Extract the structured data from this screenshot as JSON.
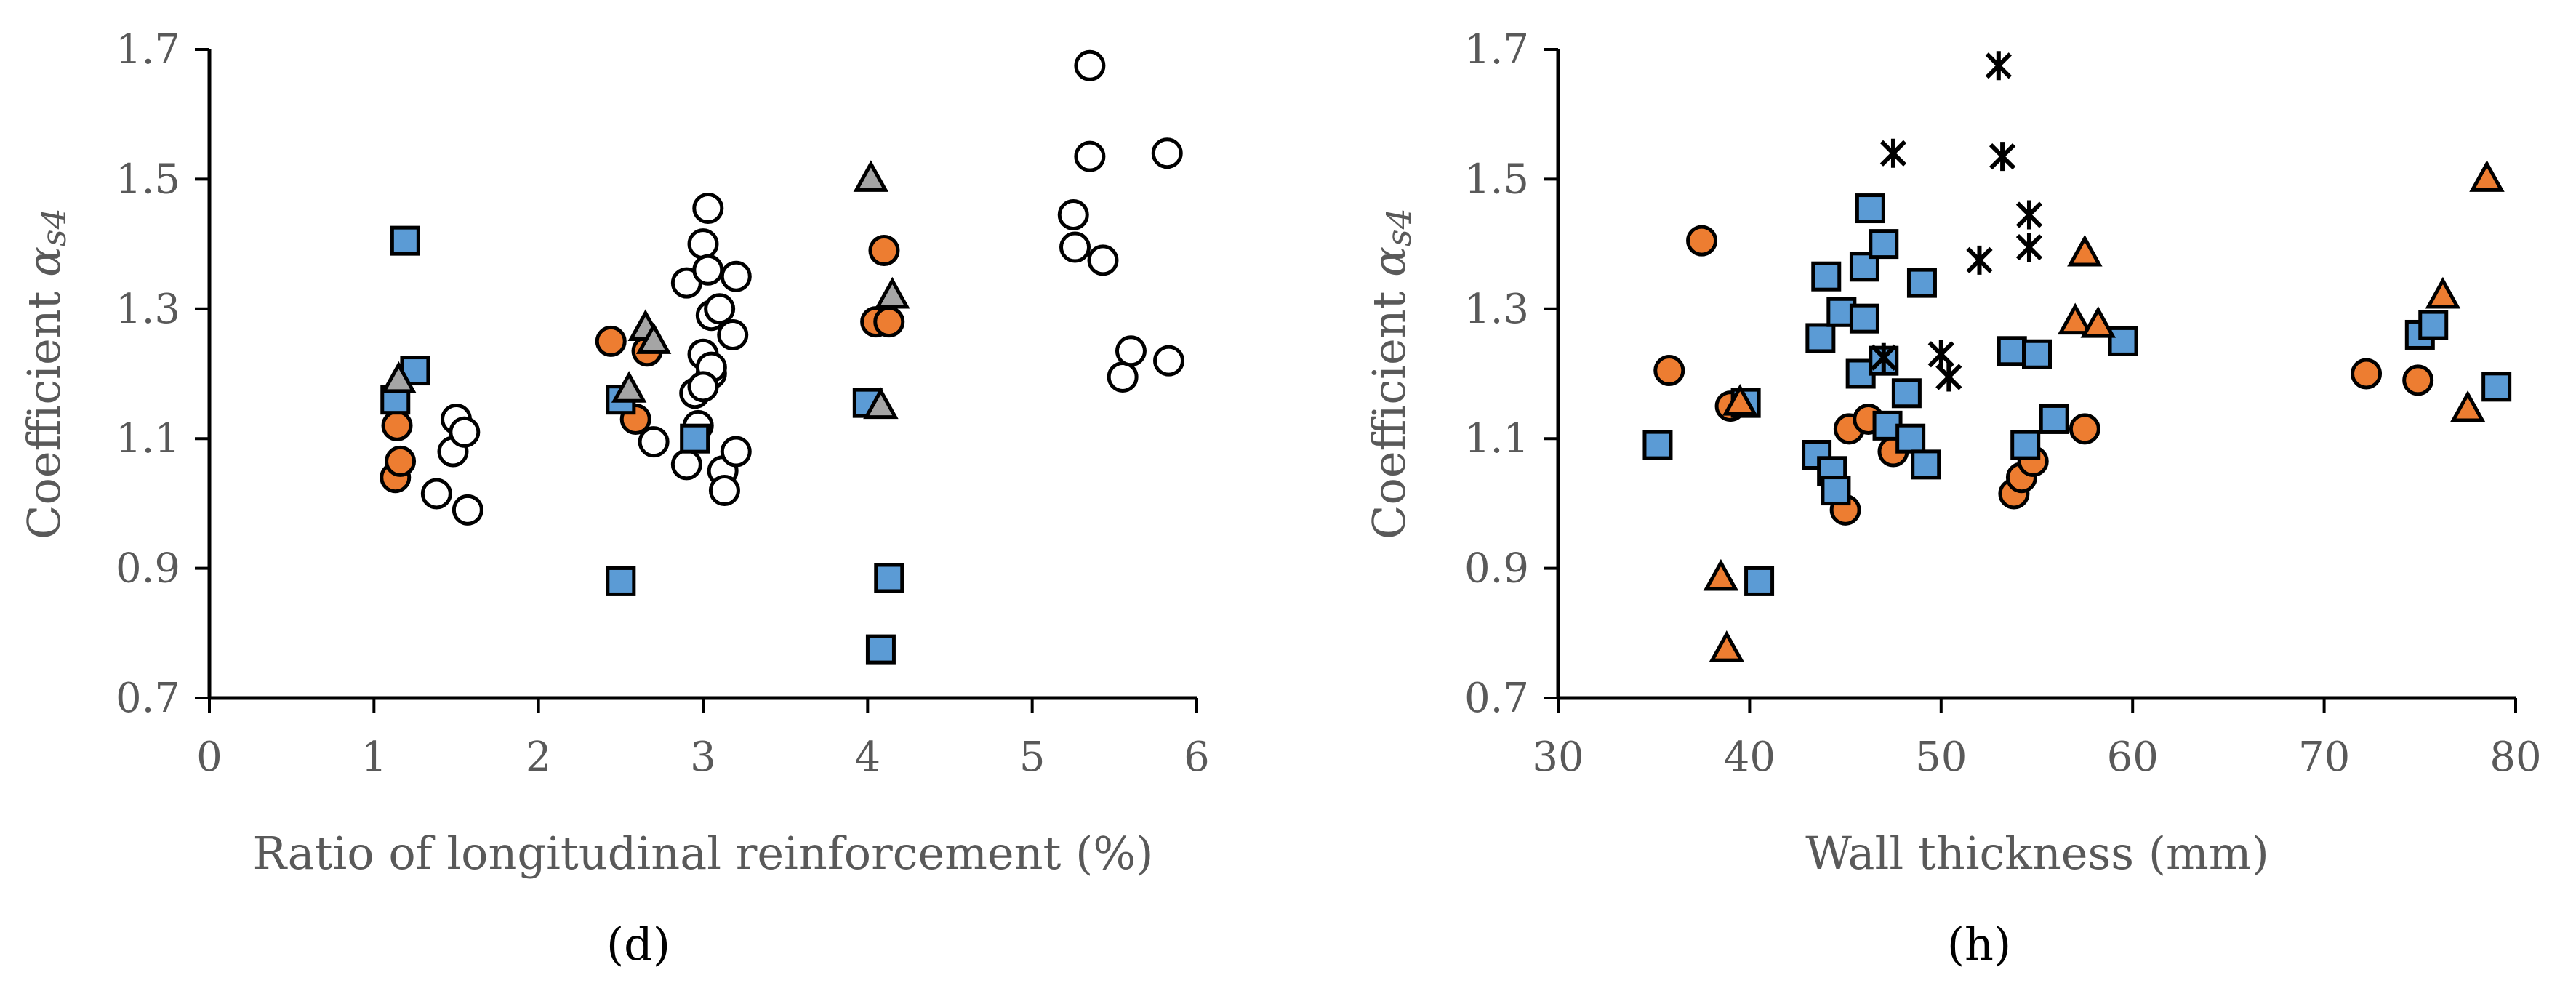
{
  "colors": {
    "circle_open": "#ffffff",
    "circle_orange": "#ed7d31",
    "square_blue": "#5b9bd5",
    "triangle_gray": "#a5a5a5",
    "triangle_orange": "#ed7d31",
    "stroke": "#000000",
    "axis": "#000000",
    "text": "#595959"
  },
  "chart_data": [
    {
      "type": "scatter",
      "caption": "(d)",
      "xlabel": "Ratio of longitudinal reinforcement (%)",
      "ylabel": "Coefficient αs4",
      "ylabel_main": "Coefficient ",
      "ylabel_greek": "α",
      "ylabel_sub": "s4",
      "xlim": [
        0,
        6
      ],
      "ylim": [
        0.7,
        1.7
      ],
      "xticks": [
        "0",
        "1",
        "2",
        "3",
        "4",
        "5",
        "6"
      ],
      "yticks": [
        "0.7",
        "0.9",
        "1.1",
        "1.3",
        "1.5",
        "1.7"
      ],
      "grid": false,
      "series": [
        {
          "name": "open circles",
          "marker": "circle",
          "fill": "open",
          "points": [
            [
              1.38,
              1.015
            ],
            [
              1.48,
              1.08
            ],
            [
              1.5,
              1.13
            ],
            [
              1.55,
              1.11
            ],
            [
              1.57,
              0.99
            ],
            [
              2.7,
              1.095
            ],
            [
              2.9,
              1.34
            ],
            [
              2.9,
              1.06
            ],
            [
              2.95,
              1.17
            ],
            [
              2.97,
              1.12
            ],
            [
              3.0,
              1.4
            ],
            [
              3.0,
              1.23
            ],
            [
              3.03,
              1.455
            ],
            [
              3.03,
              1.36
            ],
            [
              3.05,
              1.29
            ],
            [
              3.05,
              1.2
            ],
            [
              3.1,
              1.3
            ],
            [
              3.12,
              1.05
            ],
            [
              3.13,
              1.02
            ],
            [
              3.18,
              1.26
            ],
            [
              3.2,
              1.35
            ],
            [
              3.2,
              1.08
            ],
            [
              3.05,
              1.21
            ],
            [
              3.0,
              1.18
            ],
            [
              5.25,
              1.445
            ],
            [
              5.26,
              1.395
            ],
            [
              5.35,
              1.675
            ],
            [
              5.35,
              1.535
            ],
            [
              5.43,
              1.375
            ],
            [
              5.55,
              1.195
            ],
            [
              5.6,
              1.235
            ],
            [
              5.82,
              1.54
            ],
            [
              5.83,
              1.22
            ]
          ]
        },
        {
          "name": "orange circles",
          "marker": "circle",
          "fill": "orange",
          "points": [
            [
              1.13,
              1.04
            ],
            [
              1.14,
              1.12
            ],
            [
              1.16,
              1.065
            ],
            [
              2.44,
              1.25
            ],
            [
              2.59,
              1.13
            ],
            [
              2.66,
              1.235
            ],
            [
              4.05,
              1.28
            ],
            [
              4.1,
              1.39
            ],
            [
              4.13,
              1.28
            ]
          ]
        },
        {
          "name": "blue squares",
          "marker": "square",
          "fill": "blue",
          "points": [
            [
              1.13,
              1.16
            ],
            [
              1.19,
              1.405
            ],
            [
              1.25,
              1.205
            ],
            [
              2.5,
              1.16
            ],
            [
              2.5,
              0.88
            ],
            [
              2.95,
              1.1
            ],
            [
              4.0,
              1.155
            ],
            [
              4.08,
              0.775
            ],
            [
              4.13,
              0.885
            ]
          ]
        },
        {
          "name": "gray triangles",
          "marker": "triangle",
          "fill": "gray",
          "points": [
            [
              1.15,
              1.19
            ],
            [
              2.55,
              1.175
            ],
            [
              2.65,
              1.27
            ],
            [
              2.7,
              1.25
            ],
            [
              4.02,
              1.5
            ],
            [
              4.08,
              1.15
            ],
            [
              4.15,
              1.32
            ]
          ]
        }
      ]
    },
    {
      "type": "scatter",
      "caption": "(h)",
      "xlabel": "Wall thickness (mm)",
      "ylabel": "Coefficient αs4",
      "ylabel_main": "Coefficient ",
      "ylabel_greek": "α",
      "ylabel_sub": "s4",
      "xlim": [
        30,
        80
      ],
      "ylim": [
        0.7,
        1.7
      ],
      "xticks": [
        "30",
        "40",
        "50",
        "60",
        "70",
        "80"
      ],
      "yticks": [
        "0.7",
        "0.9",
        "1.1",
        "1.3",
        "1.5",
        "1.7"
      ],
      "grid": false,
      "series": [
        {
          "name": "orange circles",
          "marker": "circle",
          "fill": "orange",
          "points": [
            [
              35.8,
              1.205
            ],
            [
              37.5,
              1.405
            ],
            [
              39.0,
              1.15
            ],
            [
              45.0,
              0.99
            ],
            [
              45.2,
              1.115
            ],
            [
              46.2,
              1.13
            ],
            [
              47.5,
              1.08
            ],
            [
              53.8,
              1.015
            ],
            [
              54.2,
              1.04
            ],
            [
              54.8,
              1.065
            ],
            [
              57.5,
              1.115
            ],
            [
              72.2,
              1.2
            ],
            [
              74.9,
              1.19
            ]
          ]
        },
        {
          "name": "blue squares",
          "marker": "square",
          "fill": "blue",
          "points": [
            [
              35.2,
              1.09
            ],
            [
              39.8,
              1.155
            ],
            [
              40.5,
              0.88
            ],
            [
              43.5,
              1.075
            ],
            [
              43.7,
              1.255
            ],
            [
              44.0,
              1.35
            ],
            [
              44.3,
              1.05
            ],
            [
              44.5,
              1.02
            ],
            [
              44.8,
              1.295
            ],
            [
              45.8,
              1.2
            ],
            [
              46.0,
              1.365
            ],
            [
              46.0,
              1.285
            ],
            [
              46.3,
              1.455
            ],
            [
              47.0,
              1.22
            ],
            [
              47.0,
              1.4
            ],
            [
              47.2,
              1.12
            ],
            [
              48.2,
              1.17
            ],
            [
              48.4,
              1.1
            ],
            [
              49.0,
              1.34
            ],
            [
              49.2,
              1.06
            ],
            [
              53.7,
              1.235
            ],
            [
              54.4,
              1.09
            ],
            [
              55.0,
              1.23
            ],
            [
              55.9,
              1.13
            ],
            [
              59.5,
              1.25
            ],
            [
              75.0,
              1.26
            ],
            [
              75.7,
              1.275
            ],
            [
              79.0,
              1.18
            ]
          ]
        },
        {
          "name": "orange triangles",
          "marker": "triangle",
          "fill": "orange",
          "points": [
            [
              38.5,
              0.885
            ],
            [
              38.8,
              0.775
            ],
            [
              39.5,
              1.155
            ],
            [
              57.0,
              1.28
            ],
            [
              57.5,
              1.385
            ],
            [
              58.2,
              1.275
            ],
            [
              76.2,
              1.32
            ],
            [
              77.5,
              1.145
            ],
            [
              78.5,
              1.5
            ]
          ]
        },
        {
          "name": "asterisks",
          "marker": "asterisk",
          "fill": "none",
          "points": [
            [
              47.0,
              1.225
            ],
            [
              47.5,
              1.54
            ],
            [
              50.0,
              1.23
            ],
            [
              50.4,
              1.195
            ],
            [
              52.0,
              1.375
            ],
            [
              53.0,
              1.675
            ],
            [
              53.2,
              1.535
            ],
            [
              54.6,
              1.445
            ],
            [
              54.6,
              1.395
            ]
          ]
        }
      ]
    }
  ]
}
